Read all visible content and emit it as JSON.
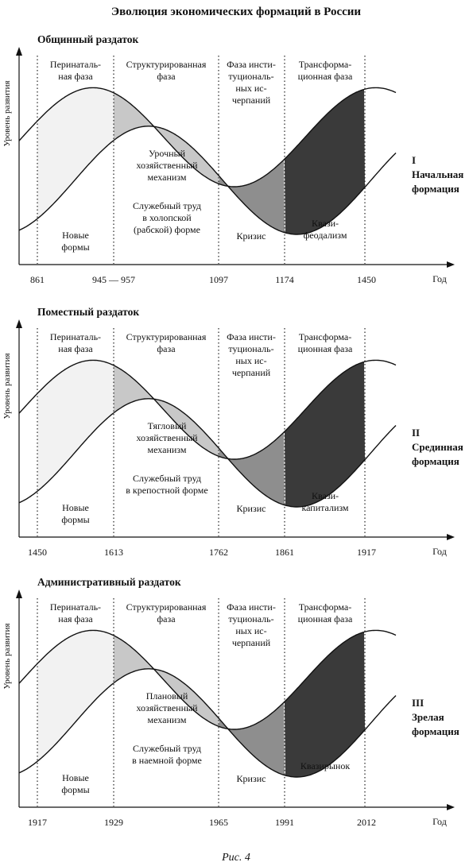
{
  "title": "Эволюция экономических формаций в России",
  "caption": "Рис. 4",
  "y_axis_label": "Уровень развития",
  "x_axis_label": "Год",
  "phases": [
    [
      "Перинаталь-",
      "ная фаза"
    ],
    [
      "Структурированная",
      "фаза"
    ],
    [
      "Фаза инсти-",
      "туциональ-",
      "ных ис-",
      "черпаний"
    ],
    [
      "Трансформа-",
      "ционная фаза"
    ]
  ],
  "colors": {
    "perinatal": "#f2f2f2",
    "structured": "#c8c8c8",
    "exhaustion": "#8e8e8e",
    "transformation": "#3a3a3a"
  },
  "panels": [
    {
      "name": "Общинный раздаток",
      "ticks": [
        "861",
        "945 — 957",
        "1097",
        "1174",
        "1450"
      ],
      "mechanism": [
        "Урочный",
        "хозяйственный",
        "механизм"
      ],
      "labor": [
        "Служебный труд",
        "в холопской",
        "(рабской) форме"
      ],
      "new_forms": [
        "Новые",
        "формы"
      ],
      "crisis": "Кризис",
      "quasi": [
        "Квази-",
        "феодализм"
      ],
      "formation": [
        "I",
        "Начальная",
        "формация"
      ]
    },
    {
      "name": "Поместный раздаток",
      "ticks": [
        "1450",
        "1613",
        "1762",
        "1861",
        "1917"
      ],
      "mechanism": [
        "Тягловый",
        "хозяйственный",
        "механизм"
      ],
      "labor": [
        "Служебный труд",
        "в крепостной форме"
      ],
      "new_forms": [
        "Новые",
        "формы"
      ],
      "crisis": "Кризис",
      "quasi": [
        "Квази-",
        "капитализм"
      ],
      "formation": [
        "II",
        "Срединная",
        "формация"
      ]
    },
    {
      "name": "Административный раздаток",
      "ticks": [
        "1917",
        "1929",
        "1965",
        "1991",
        "2012"
      ],
      "mechanism": [
        "Плановый",
        "хозяйственный",
        "механизм"
      ],
      "labor": [
        "Служебный труд",
        "в наемной форме"
      ],
      "new_forms": [
        "Новые",
        "формы"
      ],
      "crisis": "Кризис",
      "quasi": [
        "Квазирынок"
      ],
      "formation": [
        "III",
        "Зрелая",
        "формация"
      ]
    }
  ]
}
